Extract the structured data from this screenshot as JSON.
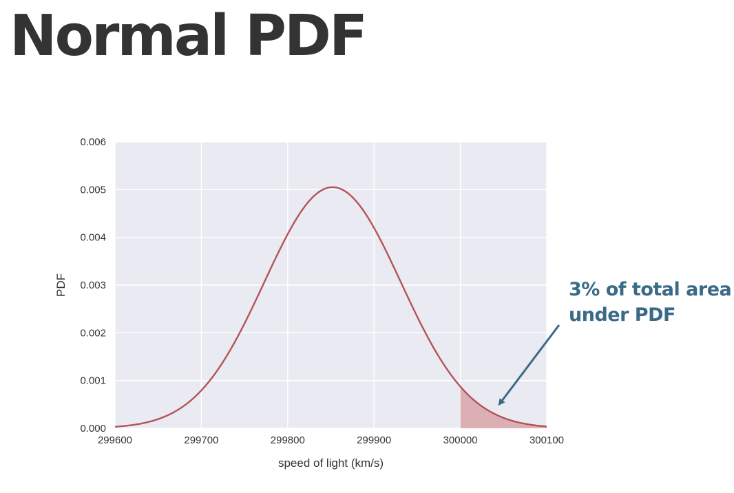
{
  "slide": {
    "title": "Normal PDF"
  },
  "annotation": {
    "line1": "3% of total area",
    "line2": "under PDF",
    "color": "#3a6a86",
    "points_to": "shaded right tail"
  },
  "chart_data": {
    "type": "line",
    "title": "",
    "xlabel": "speed of light (km/s)",
    "ylabel": "PDF",
    "xlim": [
      299600,
      300100
    ],
    "ylim": [
      0,
      0.006
    ],
    "x_ticks": [
      "299600",
      "299700",
      "299800",
      "299900",
      "300000",
      "300100"
    ],
    "y_ticks": [
      "0.000",
      "0.001",
      "0.002",
      "0.003",
      "0.004",
      "0.005",
      "0.006"
    ],
    "grid": true,
    "background": "#eaeaf2",
    "grid_color": "#ffffff",
    "line_color": "#b5525a",
    "fill_color": "#d9a4aa",
    "series": [
      {
        "distribution": "normal",
        "mean": 299852,
        "std": 79,
        "peak_pdf": 0.00505
      }
    ],
    "shaded_region": {
      "x_from": 300000,
      "x_to": 300100,
      "area_fraction": 0.03
    }
  }
}
